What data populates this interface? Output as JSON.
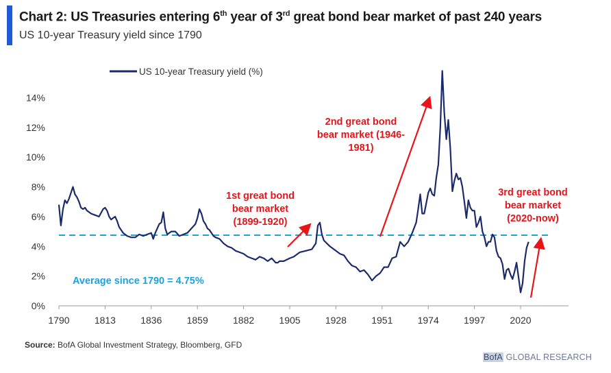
{
  "header": {
    "title_pre": "Chart 2: US Treasuries entering 6",
    "title_sup1": "th",
    "title_mid": " year of 3",
    "title_sup2": "rd",
    "title_post": " great bond bear market of past 240 years",
    "subtitle": "US 10-year Treasury yield since 1790"
  },
  "footer": {
    "source_label": "Source:",
    "source_text": " BofA Global Investment Strategy, Bloomberg, GFD",
    "brand_bofa": "BofA",
    "brand_rest": " GLOBAL RESEARCH"
  },
  "colors": {
    "series": "#1b2a6b",
    "average": "#1aa3e0",
    "annotation": "#e8141a",
    "accent": "#1e5bd8"
  },
  "chart_data": {
    "type": "line",
    "title": "Chart 2: US Treasuries entering 6th year of 3rd great bond bear market of past 240 years",
    "subtitle": "US 10-year Treasury yield since 1790",
    "xlabel": "",
    "ylabel": "",
    "xlim": [
      1790,
      2030
    ],
    "ylim": [
      0,
      16
    ],
    "x_ticks": [
      1790,
      1813,
      1836,
      1859,
      1882,
      1905,
      1928,
      1951,
      1974,
      1997,
      2020
    ],
    "x_tick_labels": [
      "1790",
      "1813",
      "1836",
      "1859",
      "1882",
      "1905",
      "1928",
      "1951",
      "1974",
      "1997",
      "2020"
    ],
    "y_ticks": [
      0,
      2,
      4,
      6,
      8,
      10,
      12,
      14
    ],
    "y_tick_labels": [
      "0%",
      "2%",
      "4%",
      "6%",
      "8%",
      "10%",
      "12%",
      "14%"
    ],
    "grid": false,
    "legend": "top-left",
    "series": [
      {
        "name": "US 10-year Treasury yield (%)",
        "x": [
          1790,
          1791,
          1792,
          1793,
          1794,
          1795,
          1796,
          1797,
          1798,
          1799,
          1800,
          1801,
          1802,
          1803,
          1804,
          1805,
          1806,
          1808,
          1810,
          1812,
          1813,
          1814,
          1815,
          1816,
          1817,
          1818,
          1819,
          1820,
          1822,
          1824,
          1826,
          1828,
          1830,
          1832,
          1834,
          1836,
          1837,
          1838,
          1839,
          1840,
          1841,
          1842,
          1843,
          1844,
          1846,
          1848,
          1850,
          1852,
          1854,
          1856,
          1858,
          1859,
          1860,
          1861,
          1862,
          1863,
          1864,
          1865,
          1866,
          1867,
          1868,
          1870,
          1872,
          1874,
          1876,
          1878,
          1880,
          1882,
          1884,
          1886,
          1888,
          1890,
          1892,
          1894,
          1896,
          1898,
          1899,
          1900,
          1902,
          1905,
          1907,
          1910,
          1913,
          1916,
          1918,
          1919,
          1920,
          1921,
          1922,
          1925,
          1928,
          1930,
          1932,
          1934,
          1936,
          1938,
          1940,
          1942,
          1944,
          1946,
          1948,
          1950,
          1952,
          1954,
          1956,
          1958,
          1960,
          1962,
          1964,
          1966,
          1968,
          1969,
          1970,
          1971,
          1972,
          1973,
          1974,
          1975,
          1976,
          1977,
          1978,
          1979,
          1980,
          1981,
          1982,
          1983,
          1984,
          1985,
          1986,
          1987,
          1988,
          1989,
          1990,
          1991,
          1992,
          1993,
          1994,
          1995,
          1996,
          1997,
          1998,
          1999,
          2000,
          2001,
          2002,
          2003,
          2004,
          2005,
          2006,
          2007,
          2008,
          2009,
          2010,
          2011,
          2012,
          2013,
          2014,
          2015,
          2016,
          2017,
          2018,
          2019,
          2020,
          2021,
          2022,
          2023,
          2024
        ],
        "values": [
          6.8,
          5.4,
          6.5,
          7.1,
          6.9,
          7.2,
          7.6,
          8.0,
          7.5,
          7.3,
          7.0,
          6.6,
          6.5,
          6.6,
          6.4,
          6.3,
          6.2,
          6.1,
          6.0,
          6.5,
          6.6,
          6.4,
          6.0,
          5.8,
          5.9,
          6.0,
          5.7,
          5.3,
          4.9,
          4.7,
          4.6,
          4.6,
          4.8,
          4.7,
          4.8,
          4.9,
          4.5,
          4.9,
          5.2,
          5.5,
          5.6,
          6.3,
          5.2,
          4.8,
          5.0,
          5.0,
          4.7,
          4.8,
          4.9,
          5.2,
          5.5,
          5.9,
          6.5,
          6.2,
          5.7,
          5.5,
          5.2,
          5.1,
          4.9,
          4.7,
          4.6,
          4.5,
          4.2,
          4.0,
          3.9,
          3.7,
          3.6,
          3.5,
          3.3,
          3.2,
          3.1,
          3.3,
          3.2,
          3.0,
          3.2,
          2.9,
          2.9,
          3.0,
          3.0,
          3.2,
          3.3,
          3.6,
          3.7,
          3.8,
          4.2,
          5.4,
          5.6,
          4.8,
          4.4,
          4.0,
          3.7,
          3.5,
          3.4,
          3.0,
          2.7,
          2.6,
          2.3,
          2.4,
          2.1,
          1.7,
          2.0,
          2.2,
          2.6,
          2.6,
          3.2,
          3.3,
          4.3,
          4.0,
          4.3,
          4.9,
          5.6,
          6.5,
          7.5,
          6.2,
          6.2,
          6.9,
          7.6,
          7.9,
          7.5,
          7.4,
          8.6,
          9.5,
          12.0,
          15.8,
          13.0,
          11.2,
          12.5,
          10.6,
          7.7,
          8.4,
          8.9,
          8.5,
          8.6,
          8.0,
          7.0,
          5.9,
          7.1,
          6.6,
          6.4,
          6.4,
          5.3,
          5.6,
          6.0,
          5.0,
          4.6,
          4.0,
          4.3,
          4.3,
          4.8,
          4.6,
          3.7,
          3.3,
          3.2,
          2.8,
          1.8,
          2.4,
          2.5,
          2.1,
          1.8,
          2.3,
          2.9,
          1.9,
          0.9,
          1.5,
          3.0,
          3.9,
          4.3
        ]
      }
    ],
    "reference_lines": [
      {
        "name": "Average since 1790",
        "value": 4.75,
        "label": "Average since 1790 = 4.75%"
      }
    ],
    "annotations": [
      {
        "name": "1st great bond bear market",
        "lines": [
          "1st great bond",
          "bear market",
          "(1899-1920)"
        ]
      },
      {
        "name": "2nd great bond bear market",
        "lines": [
          "2nd great bond",
          "bear market (1946-",
          "1981)"
        ]
      },
      {
        "name": "3rd great bond bear market",
        "lines": [
          "3rd great bond",
          "bear market",
          "(2020-now)"
        ]
      }
    ]
  }
}
